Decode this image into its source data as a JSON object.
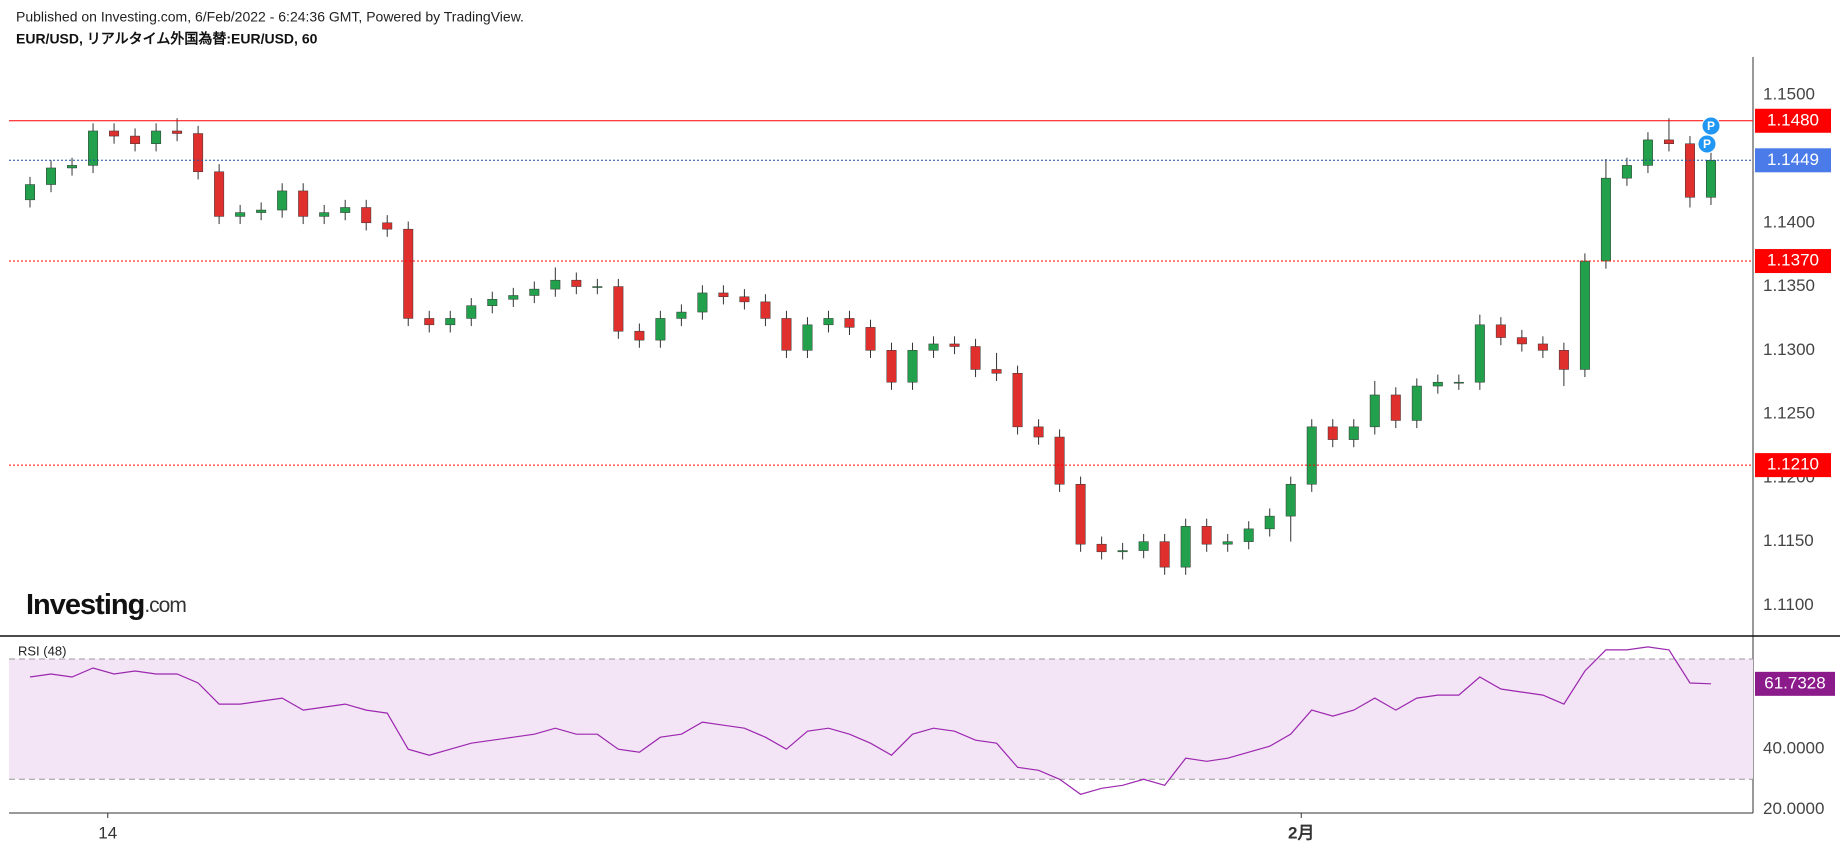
{
  "header": {
    "published": "Published on Investing.com, 6/Feb/2022 - 6:24:36 GMT, Powered by TradingView.",
    "symbol": "EUR/USD, リアルタイム外国為替:EUR/USD, 60"
  },
  "logo": {
    "brand": "Investing",
    "suffix": ".com"
  },
  "markers": [
    "P",
    "P"
  ],
  "chart_data": [
    {
      "type": "candlestick",
      "xlim": [
        -1,
        82
      ],
      "xticks": [
        {
          "value": 3.7,
          "label": "14"
        },
        {
          "value": 60.5,
          "label": "2月"
        }
      ],
      "ylim": [
        1.1076,
        1.153
      ],
      "yticks": [
        {
          "value": 1.11,
          "label": "1.1100"
        },
        {
          "value": 1.115,
          "label": "1.1150"
        },
        {
          "value": 1.12,
          "label": "1.1200"
        },
        {
          "value": 1.125,
          "label": "1.1250"
        },
        {
          "value": 1.13,
          "label": "1.1300"
        },
        {
          "value": 1.135,
          "label": "1.1350"
        },
        {
          "value": 1.14,
          "label": "1.1400"
        },
        {
          "value": 1.145,
          "label": "1.1450"
        },
        {
          "value": 1.15,
          "label": "1.1500"
        }
      ],
      "up_color": "#22a04b",
      "down_color": "#e0302e",
      "last_color": "#4a7be8",
      "levels": [
        {
          "value": 1.148,
          "label": "1.1480",
          "color": "#ff0000",
          "style": "solid"
        },
        {
          "value": 1.137,
          "label": "1.1370",
          "color": "#ff0000",
          "style": "dotted"
        },
        {
          "value": 1.121,
          "label": "1.1210",
          "color": "#ff0000",
          "style": "dotted"
        }
      ],
      "open": [
        1.1418,
        1.143,
        1.1443,
        1.1445,
        1.1472,
        1.1468,
        1.1462,
        1.1472,
        1.147,
        1.144,
        1.1405,
        1.1408,
        1.141,
        1.1425,
        1.1405,
        1.1408,
        1.1412,
        1.14,
        1.1395,
        1.1325,
        1.132,
        1.1325,
        1.1335,
        1.134,
        1.1343,
        1.1348,
        1.1355,
        1.135,
        1.135,
        1.1315,
        1.1308,
        1.1325,
        1.133,
        1.1345,
        1.1342,
        1.1338,
        1.1325,
        1.13,
        1.132,
        1.1325,
        1.1318,
        1.13,
        1.1275,
        1.13,
        1.1305,
        1.1303,
        1.1285,
        1.1282,
        1.124,
        1.1232,
        1.1195,
        1.1148,
        1.1142,
        1.1143,
        1.115,
        1.113,
        1.1162,
        1.1148,
        1.115,
        1.116,
        1.117,
        1.1195,
        1.124,
        1.123,
        1.124,
        1.1265,
        1.1245,
        1.1272,
        1.1275,
        1.1275,
        1.132,
        1.131,
        1.1305,
        1.13,
        1.1285,
        1.137,
        1.1435,
        1.1445,
        1.1465,
        1.1462,
        1.142
      ],
      "high": [
        1.1436,
        1.1449,
        1.1451,
        1.1478,
        1.1478,
        1.1474,
        1.1478,
        1.1482,
        1.1476,
        1.1446,
        1.1414,
        1.1416,
        1.1431,
        1.1431,
        1.1414,
        1.1418,
        1.1418,
        1.1406,
        1.1401,
        1.1331,
        1.1331,
        1.1341,
        1.1346,
        1.1349,
        1.1354,
        1.1365,
        1.1361,
        1.1356,
        1.1356,
        1.1321,
        1.1331,
        1.1336,
        1.1351,
        1.1351,
        1.1348,
        1.1344,
        1.1331,
        1.1326,
        1.1331,
        1.1331,
        1.1324,
        1.1306,
        1.1306,
        1.1311,
        1.1311,
        1.1309,
        1.1298,
        1.1288,
        1.1246,
        1.1238,
        1.1201,
        1.1154,
        1.1149,
        1.1156,
        1.1156,
        1.1168,
        1.1168,
        1.1156,
        1.1166,
        1.1176,
        1.1201,
        1.1246,
        1.1246,
        1.1246,
        1.1276,
        1.1271,
        1.1278,
        1.1281,
        1.1281,
        1.1328,
        1.1326,
        1.1316,
        1.1311,
        1.1306,
        1.1376,
        1.145,
        1.1451,
        1.1471,
        1.1482,
        1.1468,
        1.1455
      ],
      "low": [
        1.1412,
        1.1424,
        1.1437,
        1.1439,
        1.1462,
        1.1456,
        1.1456,
        1.1464,
        1.1434,
        1.1399,
        1.1399,
        1.1402,
        1.1404,
        1.1399,
        1.1399,
        1.1402,
        1.1394,
        1.1389,
        1.1319,
        1.1314,
        1.1314,
        1.1319,
        1.1329,
        1.1334,
        1.1337,
        1.1342,
        1.1344,
        1.1344,
        1.1309,
        1.1302,
        1.1302,
        1.1319,
        1.1324,
        1.1336,
        1.1332,
        1.1319,
        1.1294,
        1.1294,
        1.1314,
        1.1312,
        1.1294,
        1.1269,
        1.1269,
        1.1294,
        1.1297,
        1.1279,
        1.1276,
        1.1234,
        1.1226,
        1.1189,
        1.1142,
        1.1136,
        1.1136,
        1.1137,
        1.1124,
        1.1124,
        1.1142,
        1.1142,
        1.1144,
        1.1154,
        1.115,
        1.1189,
        1.1224,
        1.1224,
        1.1234,
        1.1239,
        1.1239,
        1.1266,
        1.1269,
        1.1269,
        1.1304,
        1.1299,
        1.1294,
        1.1272,
        1.1279,
        1.1364,
        1.1429,
        1.1439,
        1.1456,
        1.1412,
        1.1414
      ],
      "close": [
        1.143,
        1.1443,
        1.1445,
        1.1472,
        1.1468,
        1.1462,
        1.1472,
        1.147,
        1.144,
        1.1405,
        1.1408,
        1.141,
        1.1425,
        1.1405,
        1.1408,
        1.1412,
        1.14,
        1.1395,
        1.1325,
        1.132,
        1.1325,
        1.1335,
        1.134,
        1.1343,
        1.1348,
        1.1355,
        1.135,
        1.135,
        1.1315,
        1.1308,
        1.1325,
        1.133,
        1.1345,
        1.1342,
        1.1338,
        1.1325,
        1.13,
        1.132,
        1.1325,
        1.1318,
        1.13,
        1.1275,
        1.13,
        1.1305,
        1.1303,
        1.1285,
        1.1282,
        1.124,
        1.1232,
        1.1195,
        1.1148,
        1.1142,
        1.1143,
        1.115,
        1.113,
        1.1162,
        1.1148,
        1.115,
        1.116,
        1.117,
        1.1195,
        1.124,
        1.123,
        1.124,
        1.1265,
        1.1245,
        1.1272,
        1.1275,
        1.1275,
        1.132,
        1.131,
        1.1305,
        1.13,
        1.1285,
        1.137,
        1.1435,
        1.1445,
        1.1465,
        1.1462,
        1.142,
        1.1449
      ]
    },
    {
      "type": "line",
      "title": "RSI (48)",
      "color": "#9c27b0",
      "band_color": "#f3e5f5",
      "bands": [
        30,
        70
      ],
      "xlim": [
        -1,
        82
      ],
      "ylim": [
        18.8,
        77.3
      ],
      "yticks": [
        {
          "value": 20,
          "label": "20.0000"
        },
        {
          "value": 40,
          "label": "40.0000"
        }
      ],
      "values": [
        64,
        65,
        64,
        67,
        65,
        66,
        65,
        65,
        62,
        55,
        55,
        56,
        57,
        53,
        54,
        55,
        53,
        52,
        40,
        38,
        40,
        42,
        43,
        44,
        45,
        47,
        45,
        45,
        40,
        39,
        44,
        45,
        49,
        48,
        47,
        44,
        40,
        46,
        47,
        45,
        42,
        38,
        45,
        47,
        46,
        43,
        42,
        34,
        33,
        30,
        25,
        27,
        28,
        30,
        28,
        37,
        36,
        37,
        39,
        41,
        45,
        53,
        51,
        53,
        57,
        53,
        57,
        58,
        58,
        64,
        60,
        59,
        58,
        55,
        66,
        73,
        73,
        74,
        73,
        62,
        61.7328
      ],
      "last_color": "#8b1a8b"
    }
  ]
}
